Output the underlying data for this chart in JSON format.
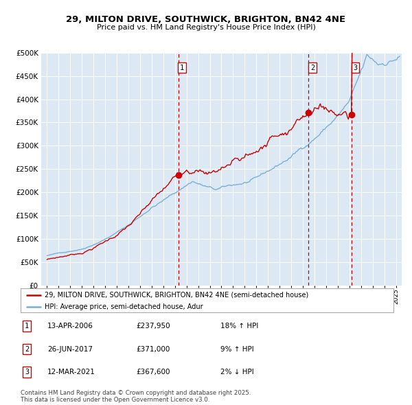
{
  "title": "29, MILTON DRIVE, SOUTHWICK, BRIGHTON, BN42 4NE",
  "subtitle": "Price paid vs. HM Land Registry's House Price Index (HPI)",
  "legend_property": "29, MILTON DRIVE, SOUTHWICK, BRIGHTON, BN42 4NE (semi-detached house)",
  "legend_hpi": "HPI: Average price, semi-detached house, Adur",
  "transactions": [
    {
      "num": 1,
      "date": "13-APR-2006",
      "price": 237950,
      "pct": "18%",
      "dir": "↑"
    },
    {
      "num": 2,
      "date": "26-JUN-2017",
      "price": 371000,
      "pct": "9%",
      "dir": "↑"
    },
    {
      "num": 3,
      "date": "12-MAR-2021",
      "price": 367600,
      "pct": "2%",
      "dir": "↓"
    }
  ],
  "vline_dates": [
    2006.283,
    2017.484,
    2021.192
  ],
  "vline_colors": [
    "#cc0000",
    "#cc0000",
    "#cc0000"
  ],
  "dot_prices": [
    237950,
    371000,
    367600
  ],
  "ylim": [
    0,
    500000
  ],
  "yticks": [
    0,
    50000,
    100000,
    150000,
    200000,
    250000,
    300000,
    350000,
    400000,
    450000,
    500000
  ],
  "xlim": [
    1994.5,
    2025.5
  ],
  "plot_bg": "#dce9f5",
  "grid_color": "#ffffff",
  "property_line_color": "#cc0000",
  "hpi_line_color": "#7bafd4",
  "footer": "Contains HM Land Registry data © Crown copyright and database right 2025.\nThis data is licensed under the Open Government Licence v3.0."
}
